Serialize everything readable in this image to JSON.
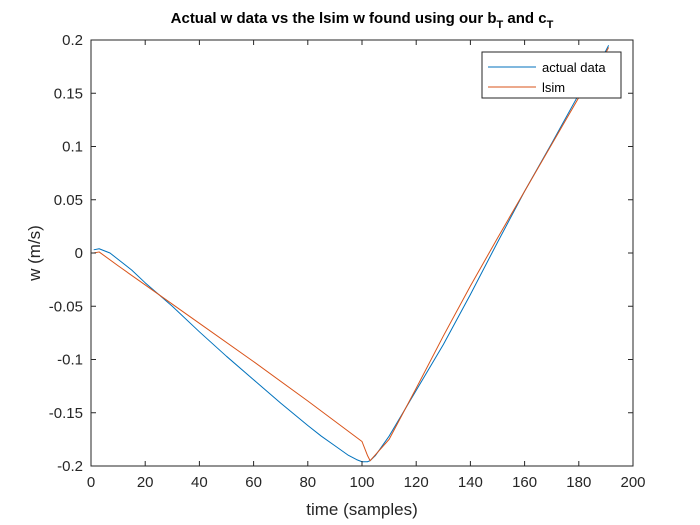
{
  "chart_data": {
    "type": "line",
    "title": {
      "prefix": "Actual w data vs the lsim w found using our b",
      "sub1": "T",
      "middle": " and c",
      "sub2": "T"
    },
    "xlabel": "time (samples)",
    "ylabel": "w (m/s)",
    "xlim": [
      0,
      200
    ],
    "ylim": [
      -0.2,
      0.2
    ],
    "xticks": [
      0,
      20,
      40,
      60,
      80,
      100,
      120,
      140,
      160,
      180,
      200
    ],
    "xtick_labels": [
      "0",
      "20",
      "40",
      "60",
      "80",
      "100",
      "120",
      "140",
      "160",
      "180",
      "200"
    ],
    "yticks": [
      -0.2,
      -0.15,
      -0.1,
      -0.05,
      0,
      0.05,
      0.1,
      0.15,
      0.2
    ],
    "ytick_labels": [
      "-0.2",
      "-0.15",
      "-0.1",
      "-0.05",
      "0",
      "0.05",
      "0.1",
      "0.15",
      "0.2"
    ],
    "grid": false,
    "legend_position": "top-right",
    "series": [
      {
        "name": "actual data",
        "color": "#0072BD",
        "x": [
          1,
          3,
          5,
          7,
          10,
          15,
          20,
          25,
          30,
          40,
          50,
          60,
          70,
          80,
          85,
          90,
          95,
          98,
          100,
          102,
          103,
          105,
          110,
          120,
          130,
          140,
          150,
          160,
          170,
          180,
          185,
          190,
          191
        ],
        "y": [
          0.003,
          0.004,
          0.002,
          0.0,
          -0.006,
          -0.016,
          -0.028,
          -0.039,
          -0.05,
          -0.074,
          -0.097,
          -0.119,
          -0.141,
          -0.162,
          -0.172,
          -0.181,
          -0.19,
          -0.194,
          -0.196,
          -0.196,
          -0.195,
          -0.19,
          -0.172,
          -0.129,
          -0.086,
          -0.039,
          0.01,
          0.058,
          0.103,
          0.149,
          0.171,
          0.19,
          0.195
        ]
      },
      {
        "name": "lsim",
        "color": "#D95319",
        "x": [
          1,
          3,
          10,
          20,
          40,
          60,
          80,
          100,
          102,
          103,
          110,
          120,
          130,
          140,
          150,
          160,
          170,
          180,
          190,
          191
        ],
        "y": [
          0.0,
          0.001,
          -0.012,
          -0.03,
          -0.066,
          -0.102,
          -0.139,
          -0.177,
          -0.19,
          -0.195,
          -0.175,
          -0.127,
          -0.078,
          -0.031,
          0.014,
          0.058,
          0.102,
          0.146,
          0.188,
          0.193
        ]
      }
    ]
  }
}
